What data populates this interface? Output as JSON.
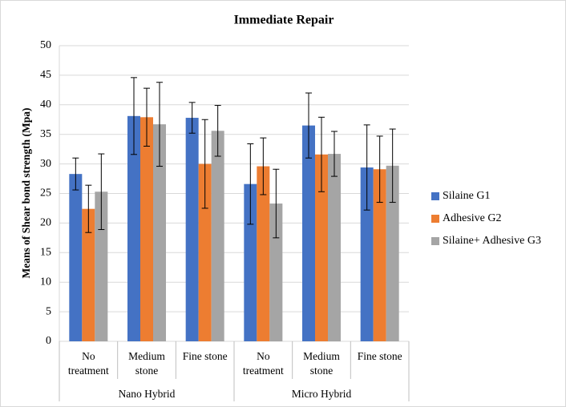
{
  "chart_data": {
    "type": "bar",
    "title": "Immediate Repair",
    "y_label": "Means of Shear bond strength (Mpa)",
    "categories": [
      "No treatment",
      "Medium stone",
      "Fine stone",
      "No treatment",
      "Medium stone",
      "Fine stone"
    ],
    "groups": [
      "Nano Hybrid",
      "Micro Hybrid"
    ],
    "series": [
      {
        "name": "Silaine G1",
        "color": "#4472c4",
        "values": [
          28.3,
          38.1,
          37.8,
          26.6,
          36.5,
          29.4
        ],
        "errors": [
          2.7,
          6.5,
          2.6,
          6.8,
          5.5,
          7.2
        ]
      },
      {
        "name": "Adhesive G2",
        "color": "#ed7d31",
        "values": [
          22.4,
          37.9,
          30.0,
          29.6,
          31.6,
          29.1
        ],
        "errors": [
          4.0,
          4.9,
          7.5,
          4.8,
          6.3,
          5.6
        ]
      },
      {
        "name": "Silaine+ Adhesive G3",
        "color": "#a5a5a5",
        "values": [
          25.3,
          36.7,
          35.6,
          23.3,
          31.7,
          29.7
        ],
        "errors": [
          6.4,
          7.1,
          4.3,
          5.8,
          3.8,
          6.2
        ]
      }
    ],
    "ylim": [
      0,
      50
    ],
    "yticks": [
      0,
      5,
      10,
      15,
      20,
      25,
      30,
      35,
      40,
      45,
      50
    ],
    "grid": true,
    "legend": "right"
  }
}
